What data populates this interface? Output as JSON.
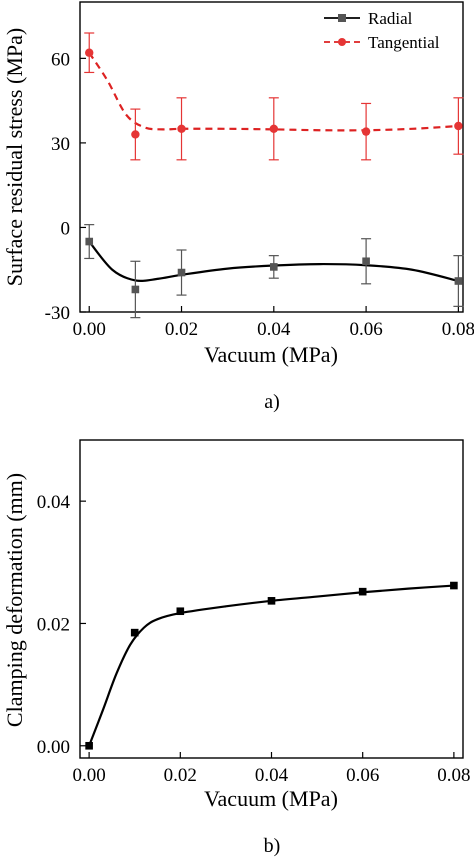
{
  "chart_data": [
    {
      "type": "line",
      "xlabel": "Vacuum (MPa)",
      "ylabel": "Surface residual stress (MPa)",
      "panel_label": "a)",
      "xlim": [
        -0.002,
        0.081
      ],
      "ylim": [
        -30,
        80
      ],
      "xticks": [
        "0.00",
        "0.02",
        "0.04",
        "0.06",
        "0.08"
      ],
      "xtick_values": [
        0,
        0.02,
        0.04,
        0.06,
        0.08
      ],
      "yticks": [
        "-30",
        "0",
        "30",
        "60"
      ],
      "ytick_values": [
        -30,
        0,
        30,
        60
      ],
      "legend_position": "top-right",
      "x": [
        0,
        0.01,
        0.02,
        0.04,
        0.06,
        0.08
      ],
      "series": [
        {
          "name": "Radial",
          "color": "#000000",
          "marker_color": "#555555",
          "marker": "square",
          "line_style": "solid",
          "values": [
            -5,
            -22,
            -16,
            -14,
            -12,
            -19
          ],
          "error": [
            6,
            10,
            8,
            4,
            8,
            9
          ],
          "fit_curve": [
            [
              0,
              -5
            ],
            [
              0.005,
              -15
            ],
            [
              0.01,
              -18.8
            ],
            [
              0.015,
              -18.2
            ],
            [
              0.02,
              -16.8
            ],
            [
              0.03,
              -14.6
            ],
            [
              0.04,
              -13.5
            ],
            [
              0.05,
              -13
            ],
            [
              0.06,
              -13.4
            ],
            [
              0.07,
              -15
            ],
            [
              0.08,
              -19
            ]
          ]
        },
        {
          "name": "Tangential",
          "color": "#dd2222",
          "marker_color": "#e53535",
          "marker": "circle",
          "line_style": "dashed",
          "values": [
            62,
            33,
            35,
            35,
            34,
            36
          ],
          "error": [
            7,
            9,
            11,
            11,
            10,
            10
          ],
          "fit_curve": [
            [
              0,
              62
            ],
            [
              0.004,
              52
            ],
            [
              0.008,
              40
            ],
            [
              0.012,
              35.5
            ],
            [
              0.016,
              34.8
            ],
            [
              0.02,
              35
            ],
            [
              0.03,
              35
            ],
            [
              0.04,
              34.8
            ],
            [
              0.05,
              34.5
            ],
            [
              0.06,
              34.5
            ],
            [
              0.07,
              35
            ],
            [
              0.08,
              36
            ]
          ]
        }
      ]
    },
    {
      "type": "scatter",
      "xlabel": "Vacuum (MPa)",
      "ylabel": "Clamping deformation (mm)",
      "panel_label": "b)",
      "xlim": [
        -0.002,
        0.082
      ],
      "ylim": [
        -0.002,
        0.05
      ],
      "xticks": [
        "0.00",
        "0.02",
        "0.04",
        "0.06",
        "0.08"
      ],
      "xtick_values": [
        0,
        0.02,
        0.04,
        0.06,
        0.08
      ],
      "yticks": [
        "0.00",
        "0.02",
        "0.04"
      ],
      "ytick_values": [
        0,
        0.02,
        0.04
      ],
      "x": [
        0,
        0.01,
        0.02,
        0.04,
        0.06,
        0.08
      ],
      "series": [
        {
          "color": "#000000",
          "marker": "square",
          "values": [
            0.0,
            0.0185,
            0.022,
            0.0237,
            0.0252,
            0.0262
          ],
          "fit_curve": [
            [
              0,
              0
            ],
            [
              0.003,
              0.0058
            ],
            [
              0.006,
              0.0118
            ],
            [
              0.009,
              0.0165
            ],
            [
              0.012,
              0.0193
            ],
            [
              0.015,
              0.0207
            ],
            [
              0.02,
              0.0217
            ],
            [
              0.03,
              0.0228
            ],
            [
              0.04,
              0.0237
            ],
            [
              0.05,
              0.0244
            ],
            [
              0.06,
              0.0251
            ],
            [
              0.07,
              0.0257
            ],
            [
              0.08,
              0.0262
            ]
          ]
        }
      ]
    }
  ]
}
